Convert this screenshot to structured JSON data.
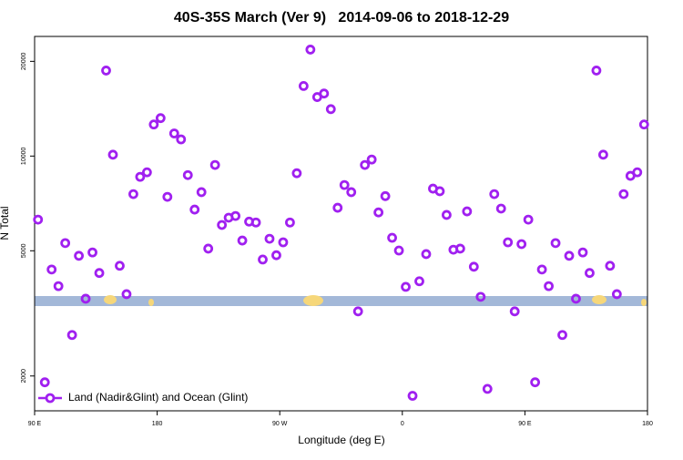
{
  "chart_data": {
    "type": "scatter",
    "title": "40S-35S March (Ver 9)   2014-09-06 to 2018-12-29",
    "xlabel": "Longitude (deg E)",
    "ylabel": "N Total",
    "xlim": [
      90,
      540
    ],
    "xticks": [
      {
        "value": 90,
        "label": "90 E"
      },
      180,
      {
        "value": 270,
        "label": "90 W"
      },
      {
        "value": 360,
        "label": "0"
      },
      {
        "value": 450,
        "label": "90 E"
      },
      {
        "value": 540,
        "label": "180"
      }
    ],
    "yscale": "log",
    "ylim": [
      1550,
      24000
    ],
    "yticks": [
      2000,
      5000,
      10000,
      20000
    ],
    "legend": "bottom-left",
    "x": [
      92.5,
      97.5,
      102.5,
      107.5,
      112.5,
      117.5,
      122.5,
      127.5,
      132.5,
      137.5,
      142.5,
      147.5,
      152.5,
      157.5,
      162.5,
      167.5,
      172.5,
      177.5,
      182.5,
      187.5,
      192.5,
      197.5,
      202.5,
      207.5,
      212.5,
      217.5,
      222.5,
      227.5,
      232.5,
      237.5,
      242.5,
      247.5,
      252.5,
      257.5,
      262.5,
      267.5,
      272.5,
      277.5,
      282.5,
      287.5,
      292.5,
      297.5,
      302.5,
      307.5,
      312.5,
      317.5,
      322.5,
      327.5,
      332.5,
      337.5,
      342.5,
      347.5,
      352.5,
      357.5,
      362.5,
      367.5,
      372.5,
      377.5,
      382.5,
      387.5,
      392.5,
      397.5,
      402.5,
      407.5,
      412.5,
      417.5,
      422.5,
      427.5,
      432.5,
      437.5,
      442.5,
      447.5,
      452.5,
      457.5,
      462.5,
      467.5,
      472.5,
      477.5,
      482.5,
      487.5,
      492.5,
      497.5,
      502.5,
      507.5,
      512.5,
      517.5,
      522.5,
      527.5,
      532.5,
      537.5
    ],
    "series": [
      {
        "name": "Land (Nadir&Glint) and Ocean (Glint)",
        "color": "#a020f0",
        "values": [
          6280,
          1910,
          4360,
          3860,
          5290,
          2700,
          4820,
          3520,
          4940,
          4250,
          18700,
          10100,
          4480,
          3640,
          7570,
          8590,
          8880,
          12600,
          13200,
          7420,
          11800,
          11300,
          8700,
          6760,
          7680,
          5080,
          9370,
          6040,
          6370,
          6450,
          5390,
          6190,
          6150,
          4690,
          5460,
          4840,
          5320,
          6150,
          8820,
          16700,
          21800,
          15400,
          15800,
          14100,
          6850,
          8090,
          7680,
          3210,
          9370,
          9750,
          6620,
          7460,
          5500,
          5010,
          3840,
          1730,
          4000,
          4880,
          7880,
          7730,
          6500,
          5040,
          5080,
          6670,
          4450,
          3570,
          1820,
          7570,
          6810,
          5320,
          3210,
          5250,
          6280,
          1910,
          4360,
          3860,
          5290,
          2700,
          4820,
          3520,
          4940,
          4250,
          18700,
          10100,
          4480,
          3640,
          7570,
          8650,
          8880,
          12600
        ]
      }
    ]
  }
}
